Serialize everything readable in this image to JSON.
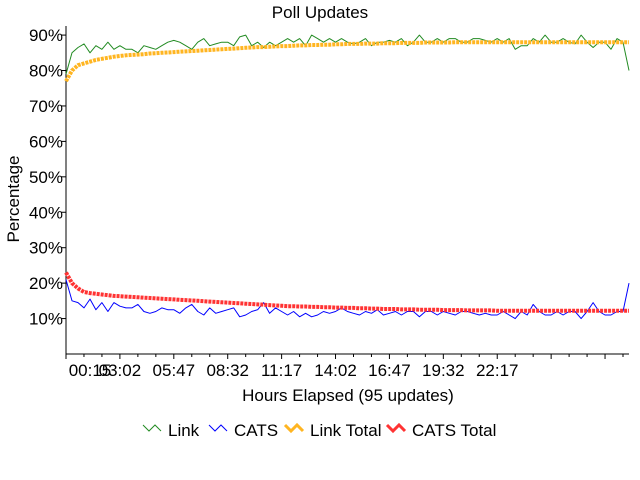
{
  "chart_data": {
    "type": "line",
    "title": "Poll Updates",
    "xlabel": "Hours Elapsed (95 updates)",
    "ylabel": "Percentage",
    "x_tick_labels": [
      "00:15",
      "03:02",
      "05:47",
      "08:32",
      "11:17",
      "14:02",
      "16:47",
      "19:32",
      "22:17"
    ],
    "y_tick_labels": [
      "10%",
      "20%",
      "30%",
      "40%",
      "50%",
      "60%",
      "70%",
      "80%",
      "90%"
    ],
    "y_ticks": [
      10,
      20,
      30,
      40,
      50,
      60,
      70,
      80,
      90
    ],
    "ylim": [
      0,
      92
    ],
    "x_count": 95,
    "x_tick_step": 9,
    "grid": false,
    "legend_position": "bottom-center",
    "series": [
      {
        "name": "Link",
        "color": "#228b22",
        "values": [
          79,
          85,
          86.5,
          87.5,
          85,
          87,
          86,
          88,
          86,
          87,
          86,
          86,
          85,
          87,
          86.5,
          86,
          87,
          88,
          88.5,
          88,
          87,
          86,
          88,
          89,
          87,
          87.5,
          88,
          88,
          87,
          89.5,
          90,
          87,
          88,
          86.5,
          88,
          87,
          88,
          89,
          88,
          89,
          87,
          90,
          89,
          88,
          89,
          88,
          89,
          88,
          87.5,
          88,
          89,
          87,
          88,
          88,
          88.5,
          88,
          89,
          87,
          88,
          90,
          88,
          88,
          89,
          88,
          89,
          89,
          88,
          88,
          89,
          89,
          88.5,
          88,
          89,
          88,
          89,
          86,
          87,
          87,
          89,
          88,
          90,
          88,
          88,
          89,
          88,
          87.5,
          90,
          88,
          86.5,
          88,
          88,
          86,
          89,
          88,
          80
        ]
      },
      {
        "name": "CATS",
        "color": "#0000ff",
        "values": [
          21,
          15,
          14.5,
          13,
          15.5,
          12.5,
          14.5,
          12,
          14.5,
          13.5,
          13,
          13,
          14,
          12,
          11.5,
          12,
          13,
          12.5,
          12.5,
          11.5,
          13,
          14,
          12,
          11,
          13,
          11.5,
          12,
          12.5,
          13,
          10.5,
          11,
          12,
          12.5,
          14.5,
          11.5,
          13,
          12,
          11,
          12,
          10.5,
          11.5,
          10.5,
          11,
          12,
          11.5,
          12,
          13,
          12,
          11.5,
          11,
          12,
          11.5,
          12.5,
          11,
          11.5,
          12,
          11,
          12,
          12,
          10.5,
          12,
          12,
          11,
          12,
          11.5,
          11,
          12,
          12,
          11.5,
          11,
          11.5,
          11,
          11,
          12,
          11,
          10,
          12,
          11,
          14,
          12,
          11,
          11,
          12,
          11,
          12,
          12,
          10,
          12,
          14.5,
          12,
          11,
          11,
          12,
          12,
          20
        ]
      },
      {
        "name": "Link Total",
        "color": "#ffb521",
        "values": [
          77,
          80,
          81.5,
          82,
          82.5,
          83,
          83.3,
          83.6,
          83.9,
          84.1,
          84.3,
          84.4,
          84.5,
          84.6,
          84.8,
          84.9,
          85.0,
          85.1,
          85.2,
          85.3,
          85.4,
          85.5,
          85.6,
          85.7,
          85.8,
          85.9,
          86.0,
          86.1,
          86.2,
          86.3,
          86.4,
          86.5,
          86.6,
          86.6,
          86.7,
          86.8,
          86.9,
          86.9,
          87.0,
          87.1,
          87.1,
          87.2,
          87.2,
          87.3,
          87.3,
          87.4,
          87.4,
          87.5,
          87.5,
          87.5,
          87.6,
          87.6,
          87.6,
          87.7,
          87.7,
          87.7,
          87.8,
          87.8,
          87.8,
          87.8,
          87.9,
          87.9,
          87.9,
          87.9,
          87.9,
          88.0,
          88.0,
          88.0,
          88.0,
          88.0,
          88.0,
          88.0,
          88.0,
          88.0,
          88.0,
          88.0,
          88.0,
          88.0,
          88.0,
          88.0,
          88.0,
          88.0,
          88.0,
          88.0,
          88.0,
          88.0,
          88.0,
          88.0,
          88.0,
          88.0,
          88.0,
          88.0,
          88.0,
          88.0,
          88.0
        ]
      },
      {
        "name": "CATS Total",
        "color": "#ff3333",
        "values": [
          23,
          20,
          18.5,
          17.5,
          17.2,
          17,
          16.8,
          16.6,
          16.4,
          16.3,
          16.2,
          16.1,
          16.0,
          15.9,
          15.8,
          15.7,
          15.6,
          15.5,
          15.4,
          15.3,
          15.2,
          15.1,
          15.0,
          14.9,
          14.8,
          14.7,
          14.6,
          14.5,
          14.4,
          14.3,
          14.2,
          14.1,
          14.0,
          13.9,
          13.8,
          13.7,
          13.6,
          13.5,
          13.5,
          13.4,
          13.4,
          13.3,
          13.3,
          13.2,
          13.2,
          13.1,
          13.1,
          13.0,
          13.0,
          12.9,
          12.9,
          12.8,
          12.8,
          12.7,
          12.7,
          12.7,
          12.6,
          12.6,
          12.6,
          12.5,
          12.5,
          12.5,
          12.5,
          12.4,
          12.4,
          12.4,
          12.4,
          12.3,
          12.3,
          12.3,
          12.3,
          12.3,
          12.2,
          12.2,
          12.2,
          12.2,
          12.2,
          12.2,
          12.2,
          12.2,
          12.2,
          12.2,
          12.2,
          12.2,
          12.2,
          12.2,
          12.2,
          12.2,
          12.2,
          12.2,
          12.2,
          12.2,
          12.2,
          12.2,
          12.2
        ]
      }
    ]
  }
}
